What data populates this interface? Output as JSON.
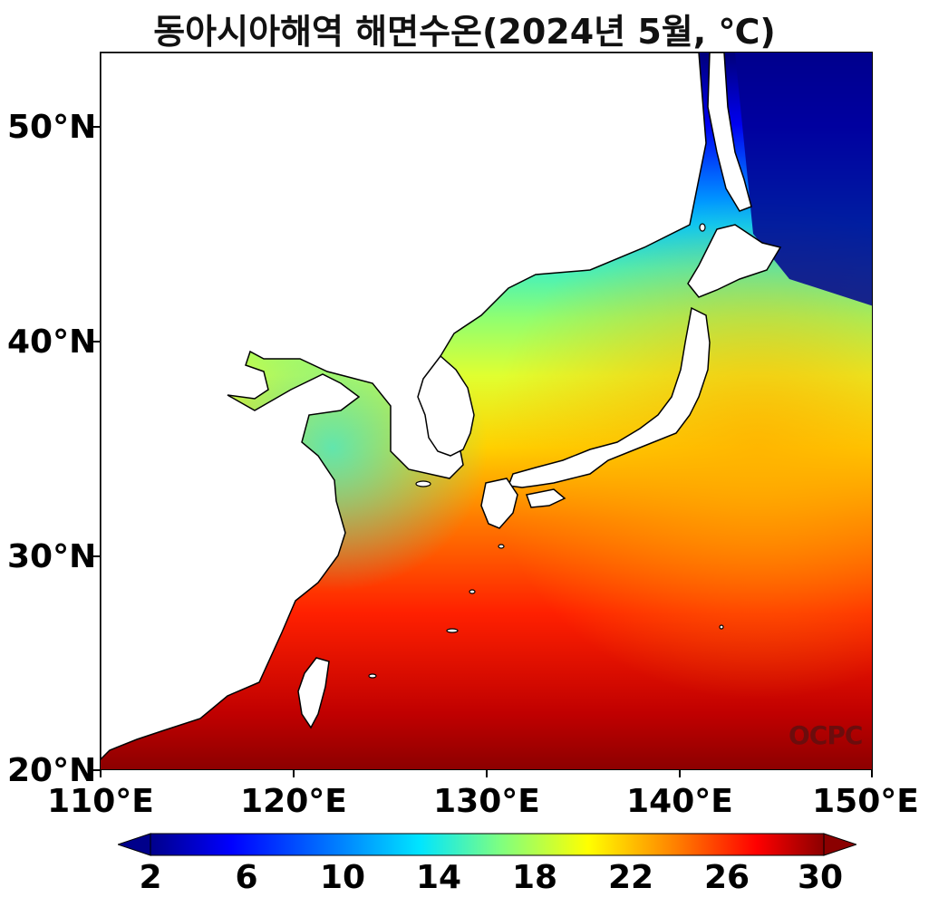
{
  "title": "동아시아해역 해면수온(2024년 5월, ℃)",
  "axes": {
    "y_labels": [
      "50°N",
      "40°N",
      "30°N",
      "20°N"
    ],
    "x_labels": [
      "110°E",
      "120°E",
      "130°E",
      "140°E",
      "150°E"
    ]
  },
  "colorbar": {
    "labels": [
      "2",
      "6",
      "10",
      "14",
      "18",
      "22",
      "26",
      "30"
    ],
    "min": 2,
    "max": 30,
    "colors": [
      "#00008b",
      "#0000ff",
      "#0080ff",
      "#00e5ff",
      "#7fff80",
      "#ffff00",
      "#ff8000",
      "#ff0000",
      "#8b0000"
    ]
  },
  "logo": "OCPC",
  "map": {
    "lon_range": [
      110,
      150
    ],
    "lat_range": [
      20,
      53
    ],
    "variable": "sea surface temperature",
    "land_color": "#ffffff",
    "coastline_color": "#000000"
  }
}
